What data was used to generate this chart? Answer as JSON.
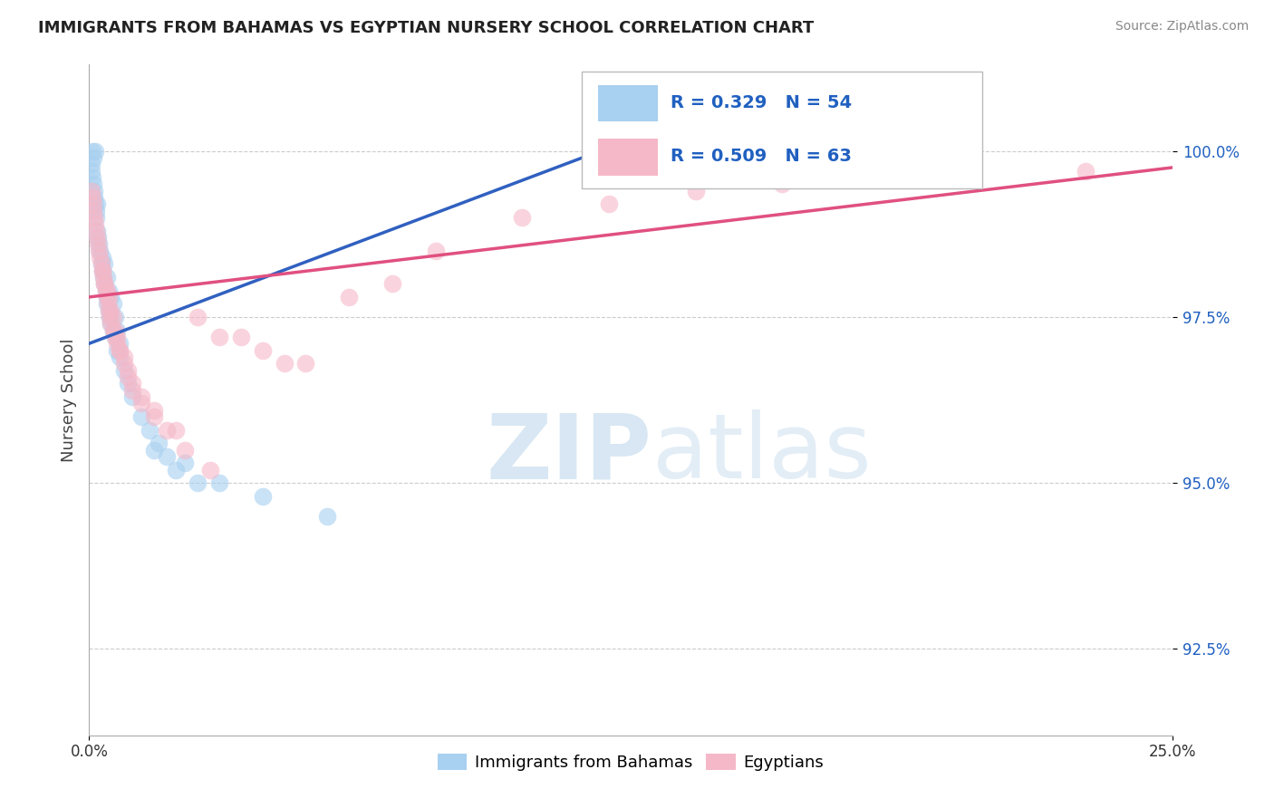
{
  "title": "IMMIGRANTS FROM BAHAMAS VS EGYPTIAN NURSERY SCHOOL CORRELATION CHART",
  "source": "Source: ZipAtlas.com",
  "ylabel": "Nursery School",
  "ytick_vals": [
    92.5,
    95.0,
    97.5,
    100.0
  ],
  "xrange": [
    0.0,
    25.0
  ],
  "yrange": [
    91.2,
    101.3
  ],
  "legend_blue_R": "R = 0.329",
  "legend_blue_N": "N = 54",
  "legend_pink_R": "R = 0.509",
  "legend_pink_N": "N = 63",
  "legend_label_blue": "Immigrants from Bahamas",
  "legend_label_pink": "Egyptians",
  "blue_scatter_color": "#a8d0f0",
  "pink_scatter_color": "#f5b8c8",
  "blue_line_color": "#3060c0",
  "pink_line_color": "#e05080",
  "legend_text_color": "#2060c0",
  "watermark_zip": "ZIP",
  "watermark_atlas": "atlas",
  "blue_x": [
    0.05,
    0.06,
    0.07,
    0.08,
    0.09,
    0.1,
    0.11,
    0.12,
    0.13,
    0.14,
    0.15,
    0.16,
    0.17,
    0.18,
    0.2,
    0.22,
    0.25,
    0.28,
    0.3,
    0.33,
    0.35,
    0.38,
    0.4,
    0.42,
    0.45,
    0.48,
    0.5,
    0.55,
    0.6,
    0.65,
    0.7,
    0.8,
    0.9,
    1.0,
    1.2,
    1.4,
    1.6,
    1.8,
    2.0,
    2.5,
    0.3,
    0.35,
    0.4,
    0.45,
    0.5,
    0.55,
    0.6,
    0.65,
    0.7,
    1.5,
    2.2,
    3.0,
    4.0,
    5.5
  ],
  "blue_y": [
    99.8,
    99.7,
    99.6,
    100.0,
    99.9,
    99.5,
    99.4,
    99.3,
    100.0,
    99.2,
    99.1,
    99.0,
    99.2,
    98.8,
    98.7,
    98.6,
    98.5,
    98.3,
    98.2,
    98.1,
    98.0,
    97.9,
    97.8,
    97.7,
    97.6,
    97.5,
    97.4,
    97.3,
    97.2,
    97.0,
    96.9,
    96.7,
    96.5,
    96.3,
    96.0,
    95.8,
    95.6,
    95.4,
    95.2,
    95.0,
    98.4,
    98.3,
    98.1,
    97.9,
    97.8,
    97.7,
    97.5,
    97.3,
    97.1,
    95.5,
    95.3,
    95.0,
    94.8,
    94.5
  ],
  "pink_x": [
    0.05,
    0.07,
    0.09,
    0.1,
    0.12,
    0.14,
    0.16,
    0.18,
    0.2,
    0.22,
    0.25,
    0.28,
    0.3,
    0.33,
    0.35,
    0.38,
    0.4,
    0.43,
    0.45,
    0.48,
    0.5,
    0.55,
    0.6,
    0.65,
    0.7,
    0.8,
    0.9,
    1.0,
    1.2,
    1.5,
    1.8,
    2.2,
    2.8,
    3.5,
    4.5,
    0.3,
    0.35,
    0.4,
    0.45,
    0.5,
    0.55,
    0.6,
    0.65,
    0.7,
    0.8,
    0.9,
    1.0,
    1.2,
    1.5,
    2.0,
    2.5,
    3.0,
    4.0,
    5.0,
    6.0,
    7.0,
    8.0,
    10.0,
    12.0,
    14.0,
    16.0,
    19.0,
    23.0
  ],
  "pink_y": [
    99.4,
    99.3,
    99.2,
    99.1,
    99.0,
    98.9,
    98.8,
    98.7,
    98.6,
    98.5,
    98.4,
    98.3,
    98.2,
    98.1,
    98.0,
    97.9,
    97.8,
    97.7,
    97.6,
    97.5,
    97.4,
    97.3,
    97.2,
    97.1,
    97.0,
    96.8,
    96.6,
    96.4,
    96.2,
    96.0,
    95.8,
    95.5,
    95.2,
    97.2,
    96.8,
    98.2,
    98.0,
    97.9,
    97.8,
    97.6,
    97.5,
    97.3,
    97.2,
    97.0,
    96.9,
    96.7,
    96.5,
    96.3,
    96.1,
    95.8,
    97.5,
    97.2,
    97.0,
    96.8,
    97.8,
    98.0,
    98.5,
    99.0,
    99.2,
    99.4,
    99.5,
    99.6,
    99.7
  ]
}
